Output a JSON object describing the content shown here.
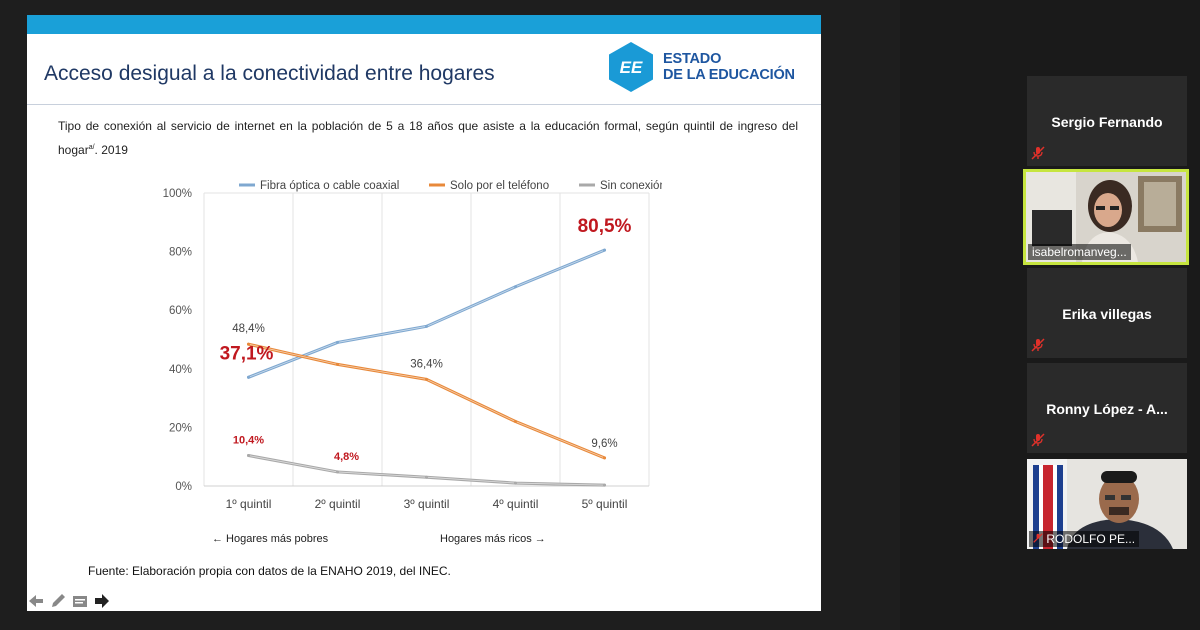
{
  "slide": {
    "title": "Acceso desigual a la conectividad  entre hogares",
    "logo_line1": "ESTADO",
    "logo_line2": "DE LA EDUCACIÓN",
    "subtitle_main": "Tipo de conexión al servicio de internet en la población de 5 a 18 años que asiste a la educación formal, según quintil de ingreso del hogar",
    "subtitle_sup": "a/",
    "subtitle_end": ". 2019",
    "source": "Fuente: Elaboración propia con datos de la ENAHO 2019, del INEC.",
    "note_left": "← Hogares más pobres",
    "note_right": "Hogares más ricos →"
  },
  "chart_data": {
    "type": "line",
    "categories": [
      "1º quintil",
      "2º quintil",
      "3º quintil",
      "4º quintil",
      "5º quintil"
    ],
    "ylim": [
      0,
      100
    ],
    "yticks": [
      "0%",
      "20%",
      "40%",
      "60%",
      "80%",
      "100%"
    ],
    "yticks_values": [
      0,
      20,
      40,
      60,
      80,
      100
    ],
    "legend_position": "top",
    "grid": "vertical",
    "series": [
      {
        "name": "Fibra óptica o cable coaxial",
        "color": "#7fa8d0",
        "values": [
          37.1,
          49,
          54.5,
          68,
          80.5
        ]
      },
      {
        "name": "Solo por el teléfono",
        "color": "#e8893a",
        "values": [
          48.4,
          41.5,
          36.4,
          22,
          9.6
        ]
      },
      {
        "name": "Sin conexión",
        "color": "#a9a9a9",
        "values": [
          10.4,
          4.8,
          3,
          1,
          0.3
        ]
      }
    ],
    "annotations": [
      {
        "text": "80,5%",
        "series": 0,
        "index": 4,
        "style": "big-red"
      },
      {
        "text": "37,1%",
        "series": 0,
        "index": 0,
        "style": "big-red"
      },
      {
        "text": "48,4%",
        "series": 1,
        "index": 0,
        "style": "gray"
      },
      {
        "text": "36,4%",
        "series": 1,
        "index": 2,
        "style": "gray"
      },
      {
        "text": "9,6%",
        "series": 1,
        "index": 4,
        "style": "gray"
      },
      {
        "text": "10,4%",
        "series": 2,
        "index": 0,
        "style": "small-red"
      },
      {
        "text": "4,8%",
        "series": 2,
        "index": 1,
        "style": "small-red"
      }
    ]
  },
  "participants": [
    {
      "name": "Sergio Fernando",
      "video": false,
      "muted": true
    },
    {
      "name": "isabelromanveg...",
      "video": true,
      "muted": false,
      "active": true
    },
    {
      "name": "Erika villegas",
      "video": false,
      "muted": true
    },
    {
      "name": "Ronny López - A...",
      "video": false,
      "muted": true
    },
    {
      "name": "RODOLFO PE...",
      "video": true,
      "muted": true
    }
  ],
  "colors": {
    "accent_bar": "#1aa0d8",
    "title": "#1f3864",
    "logo": "#1e56a0",
    "annotation_red": "#c0181f",
    "speaker_border": "#c6e53f"
  },
  "tools": [
    "arrow-left-icon",
    "pen-icon",
    "subtitles-icon",
    "pointer-icon"
  ]
}
